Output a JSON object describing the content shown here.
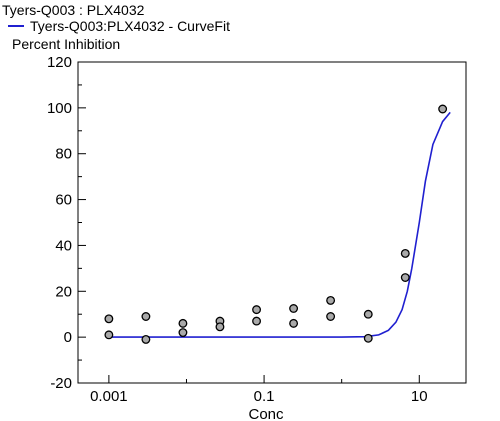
{
  "header": {
    "title": "Tyers-Q003  :  PLX4032",
    "legend_label": "Tyers-Q003:PLX4032 - CurveFit",
    "ylabel": "Percent Inhibition"
  },
  "colors": {
    "curve": "#2020d0",
    "point_fill": "#a9a9a9",
    "point_stroke": "#000000",
    "axis": "#000000"
  },
  "chart_data": {
    "type": "scatter",
    "xlabel": "Conc",
    "ylabel": "Percent Inhibition",
    "x_scale": "log",
    "xlim": [
      0.0004,
      40
    ],
    "ylim": [
      -20,
      120
    ],
    "x_ticks": [
      {
        "value": 0.001,
        "label": "0.001"
      },
      {
        "value": 0.1,
        "label": "0.1"
      },
      {
        "value": 10,
        "label": "10"
      }
    ],
    "y_ticks": [
      {
        "value": -20,
        "label": "-20"
      },
      {
        "value": 0,
        "label": "0"
      },
      {
        "value": 20,
        "label": "20"
      },
      {
        "value": 40,
        "label": "40"
      },
      {
        "value": 60,
        "label": "60"
      },
      {
        "value": 80,
        "label": "80"
      },
      {
        "value": 100,
        "label": "100"
      },
      {
        "value": 120,
        "label": "120"
      }
    ],
    "grid": false,
    "legend": "top-left",
    "series": [
      {
        "name": "Tyers-Q003:PLX4032",
        "kind": "points",
        "x": [
          0.001,
          0.001,
          0.003,
          0.003,
          0.009,
          0.009,
          0.027,
          0.027,
          0.08,
          0.08,
          0.24,
          0.24,
          0.72,
          0.72,
          2.2,
          2.2,
          6.6,
          6.6,
          20
        ],
        "y": [
          8,
          1,
          9,
          -1,
          6,
          2,
          7,
          4.5,
          12,
          7,
          12.5,
          6,
          16,
          9,
          10,
          -0.5,
          36.5,
          26,
          99.5
        ]
      },
      {
        "name": "Tyers-Q003:PLX4032 - CurveFit",
        "kind": "curve",
        "x": [
          0.001,
          0.01,
          0.1,
          1,
          2,
          3,
          4,
          5,
          6,
          7,
          8,
          10,
          12,
          15,
          20,
          25
        ],
        "y": [
          0,
          0,
          0,
          0,
          0.2,
          1,
          3,
          6.5,
          12,
          20,
          30,
          50,
          68,
          84,
          94,
          98
        ]
      }
    ]
  }
}
